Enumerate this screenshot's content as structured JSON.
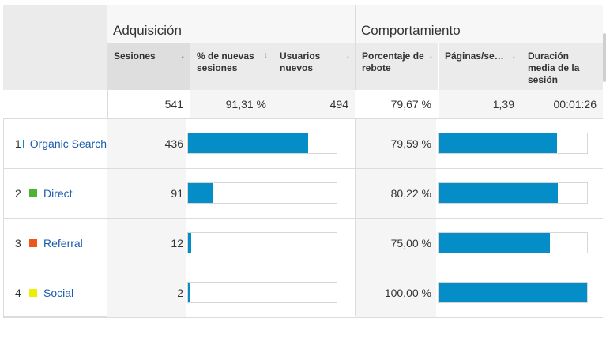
{
  "groups": {
    "acquisition": "Adquisición",
    "behavior": "Comportamiento"
  },
  "columns": {
    "sessions": "Sesiones",
    "pct_new_sessions": "% de nuevas sesiones",
    "new_users": "Usuarios nuevos",
    "bounce_rate": "Porcentaje de rebote",
    "pages_per_session": "Páginas/se…",
    "avg_duration": "Duración media de la sesión"
  },
  "icons": {
    "sort_active": "arrow-down-icon",
    "sort_inactive": "sort-icon"
  },
  "totals": {
    "sessions": "541",
    "pct_new_sessions": "91,31 %",
    "new_users": "494",
    "bounce_rate": "79,67 %",
    "pages_per_session": "1,39",
    "avg_duration": "00:01:26"
  },
  "rows": [
    {
      "index": "1",
      "label": "Organic Search",
      "color": "#058dc7",
      "sessions": "436",
      "sessions_share": 0.806,
      "bounce_rate": "79,59 %",
      "bounce_value": 79.59
    },
    {
      "index": "2",
      "label": "Direct",
      "color": "#50b432",
      "sessions": "91",
      "sessions_share": 0.168,
      "bounce_rate": "80,22 %",
      "bounce_value": 80.22
    },
    {
      "index": "3",
      "label": "Referral",
      "color": "#ed561b",
      "sessions": "12",
      "sessions_share": 0.022,
      "bounce_rate": "75,00 %",
      "bounce_value": 75.0
    },
    {
      "index": "4",
      "label": "Social",
      "color": "#edef00",
      "sessions": "2",
      "sessions_share": 0.004,
      "bounce_rate": "100,00 %",
      "bounce_value": 100.0
    }
  ],
  "colors": {
    "bar": "#058dc7",
    "link": "#1a5bab",
    "header_bg": "#ebebeb"
  }
}
